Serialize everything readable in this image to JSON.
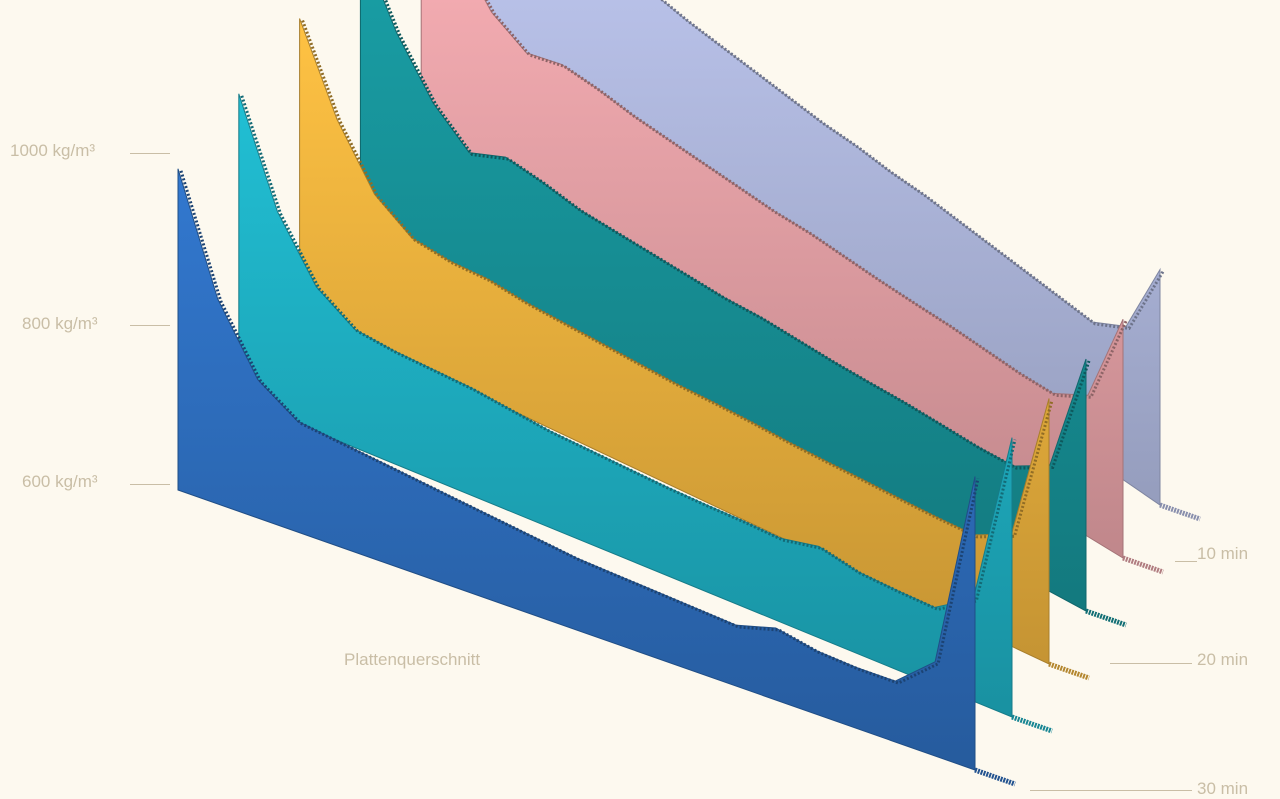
{
  "chart_data": {
    "type": "area",
    "title": "",
    "xlabel": "Plattenquerschnitt",
    "ylabel": "",
    "y_ticks": [
      "600 kg/m³",
      "800 kg/m³",
      "1000 kg/m³"
    ],
    "z_ticks": [
      "10 min",
      "20 min",
      "30 min"
    ],
    "ylim": [
      450,
      1100
    ],
    "x": [
      0,
      0.05,
      0.1,
      0.15,
      0.2,
      0.25,
      0.3,
      0.35,
      0.4,
      0.45,
      0.5,
      0.55,
      0.6,
      0.65,
      0.7,
      0.75,
      0.8,
      0.85,
      0.9,
      0.95,
      1.0
    ],
    "series": [
      {
        "time": "10 min",
        "color": "#b6bfe6",
        "values": [
          960,
          880,
          800,
          770,
          820,
          800,
          790,
          785,
          780,
          775,
          770,
          770,
          765,
          765,
          760,
          755,
          750,
          745,
          740,
          780,
          950
        ]
      },
      {
        "time": "",
        "color": "#eaa5aa",
        "values": [
          980,
          870,
          780,
          740,
          760,
          755,
          745,
          740,
          735,
          730,
          725,
          725,
          720,
          715,
          712,
          710,
          705,
          700,
          700,
          740,
          940
        ]
      },
      {
        "time": "",
        "color": "#17939a",
        "values": [
          1000,
          860,
          760,
          700,
          730,
          720,
          705,
          700,
          695,
          690,
          685,
          685,
          680,
          675,
          672,
          670,
          665,
          660,
          660,
          700,
          950
        ]
      },
      {
        "time": "20 min",
        "color": "#f0b43e",
        "values": [
          1010,
          850,
          740,
          690,
          680,
          680,
          670,
          665,
          660,
          655,
          650,
          648,
          645,
          640,
          637,
          635,
          632,
          630,
          630,
          665,
          960
        ]
      },
      {
        "time": "",
        "color": "#1fb1c4",
        "values": [
          1020,
          830,
          720,
          670,
          660,
          655,
          650,
          640,
          630,
          625,
          620,
          615,
          612,
          610,
          606,
          620,
          603,
          598,
          595,
          640,
          970
        ]
      },
      {
        "time": "30 min",
        "color": "#2e6fc0",
        "values": [
          1030,
          820,
          700,
          650,
          640,
          630,
          620,
          610,
          600,
          590,
          580,
          575,
          570,
          565,
          560,
          580,
          565,
          560,
          560,
          620,
          980
        ]
      }
    ]
  }
}
